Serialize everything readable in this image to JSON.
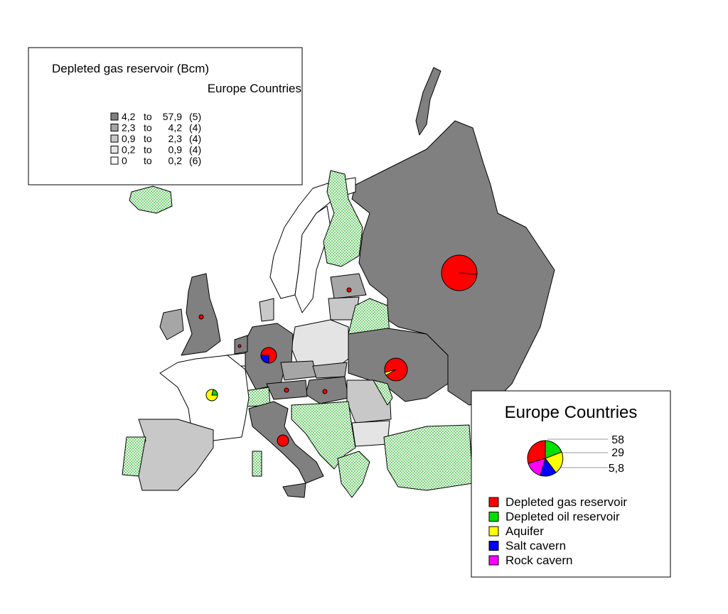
{
  "map": {
    "legend_classes": {
      "title": "Depleted gas reservoir (Bcm)",
      "subtitle": "Europe Countries",
      "items": [
        {
          "from": "4,2",
          "to": "to",
          "upper": "57,9",
          "count": "(5)",
          "color": "#808080"
        },
        {
          "from": "2,3",
          "to": "to",
          "upper": "4,2",
          "count": "(4)",
          "color": "#a6a6a6"
        },
        {
          "from": "0,9",
          "to": "to",
          "upper": "2,3",
          "count": "(4)",
          "color": "#c8c8c8"
        },
        {
          "from": "0,2",
          "to": "to",
          "upper": "0,9",
          "count": "(4)",
          "color": "#e4e4e4"
        },
        {
          "from": "0",
          "to": "to",
          "upper": "0,2",
          "count": "(6)",
          "color": "#ffffff"
        }
      ]
    },
    "legend_pies": {
      "title": "Europe Countries",
      "sizes": [
        "58",
        "29",
        "5,8"
      ],
      "items": [
        {
          "name": "Depleted gas reservoir",
          "color": "#ff0000"
        },
        {
          "name": "Depleted oil reservoir",
          "color": "#00e000"
        },
        {
          "name": "Aquifer",
          "color": "#ffff00"
        },
        {
          "name": "Salt cavern",
          "color": "#0000ff"
        },
        {
          "name": "Rock cavern",
          "color": "#ff00ff"
        }
      ]
    }
  }
}
